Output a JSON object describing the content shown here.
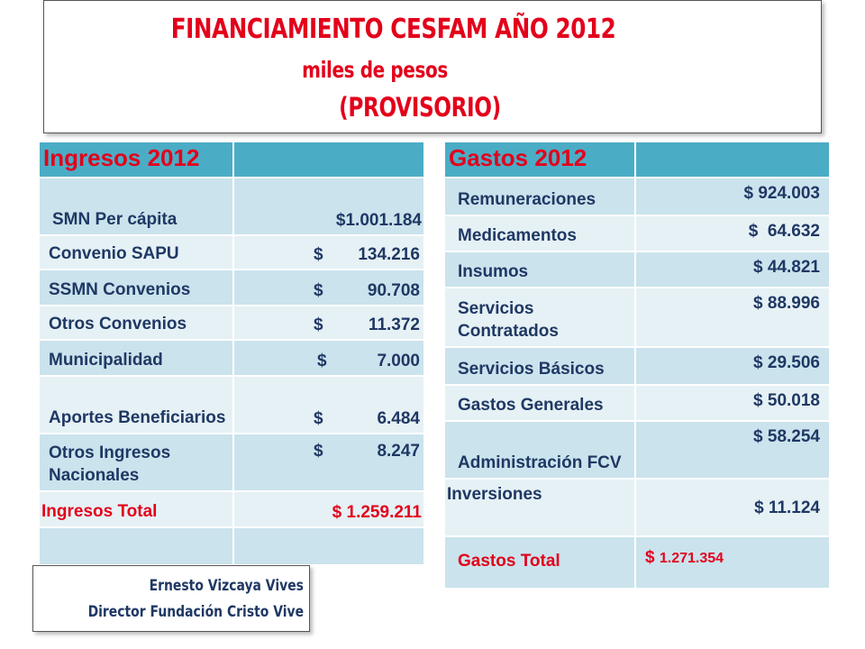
{
  "title": {
    "line1": "FINANCIAMIENTO CESFAM AÑO 2012",
    "line2": "miles de pesos",
    "line3": "(PROVISORIO)"
  },
  "ingresos": {
    "header": "Ingresos 2012",
    "rows": [
      {
        "label": "SMN Per cápita",
        "currency": "",
        "amount": "$1.001.184"
      },
      {
        "label": "Convenio SAPU",
        "currency": "$",
        "amount": "134.216"
      },
      {
        "label": "SSMN Convenios",
        "currency": "$",
        "amount": "90.708"
      },
      {
        "label": "Otros Convenios",
        "currency": "$",
        "amount": "11.372"
      },
      {
        "label": "Municipalidad",
        "currency": "$",
        "amount": "7.000"
      },
      {
        "label": "Aportes Beneficiarios",
        "currency": "$",
        "amount": "6.484"
      },
      {
        "label": "Otros Ingresos Nacionales",
        "currency": "$",
        "amount": "8.247"
      }
    ],
    "total_label": "Ingresos Total",
    "total_value": "$ 1.259.211"
  },
  "gastos": {
    "header": "Gastos 2012",
    "rows": [
      {
        "label": "Remuneraciones",
        "value": "$ 924.003"
      },
      {
        "label": "Medicamentos",
        "value": "$  64.632"
      },
      {
        "label": "Insumos",
        "value": "$ 44.821"
      },
      {
        "label": "Servicios Contratados",
        "value": "$ 88.996"
      },
      {
        "label": "Servicios Básicos",
        "value": "$ 29.506"
      },
      {
        "label": "Gastos Generales",
        "value": "$ 50.018"
      },
      {
        "label": "Administración FCV",
        "value": "$ 58.254"
      },
      {
        "label": "Inversiones",
        "value": "$ 11.124"
      }
    ],
    "total_label": "Gastos Total",
    "total_value_prefix": "$",
    "total_value": "1.271.354"
  },
  "signature": {
    "name": "Ernesto Vizcaya Vives",
    "role": "Director Fundación Cristo Vive"
  },
  "colors": {
    "header_bg": "#4bacc6",
    "row_dark": "#cbe3ed",
    "row_light": "#e6f1f5",
    "text_blue": "#1f3864",
    "text_red": "#e3001b"
  }
}
